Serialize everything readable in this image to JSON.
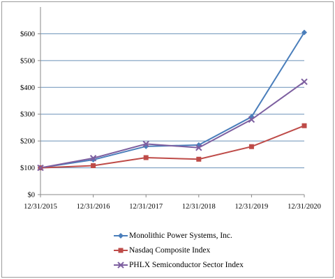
{
  "chart_data": {
    "type": "line",
    "title": "",
    "xlabel": "",
    "ylabel": "",
    "categories": [
      "12/31/2015",
      "12/31/2016",
      "12/31/2017",
      "12/31/2018",
      "12/31/2019",
      "12/31/2020"
    ],
    "ylim": [
      0,
      700
    ],
    "yticks": [
      "$0",
      "$100",
      "$200",
      "$300",
      "$400",
      "$500",
      "$600"
    ],
    "grid": true,
    "legend_position": "bottom",
    "series": [
      {
        "name": "Monolithic Power Systems, Inc.",
        "color": "#4a7ebb",
        "marker": "diamond",
        "values": [
          100,
          130,
          180,
          185,
          290,
          605
        ]
      },
      {
        "name": "Nasdaq Composite Index",
        "color": "#be4b48",
        "marker": "square",
        "values": [
          100,
          108,
          138,
          132,
          179,
          257
        ]
      },
      {
        "name": "PHLX Semiconductor Sector Index",
        "color": "#7d5fa0",
        "marker": "x",
        "values": [
          100,
          136,
          189,
          175,
          280,
          421
        ]
      }
    ]
  }
}
